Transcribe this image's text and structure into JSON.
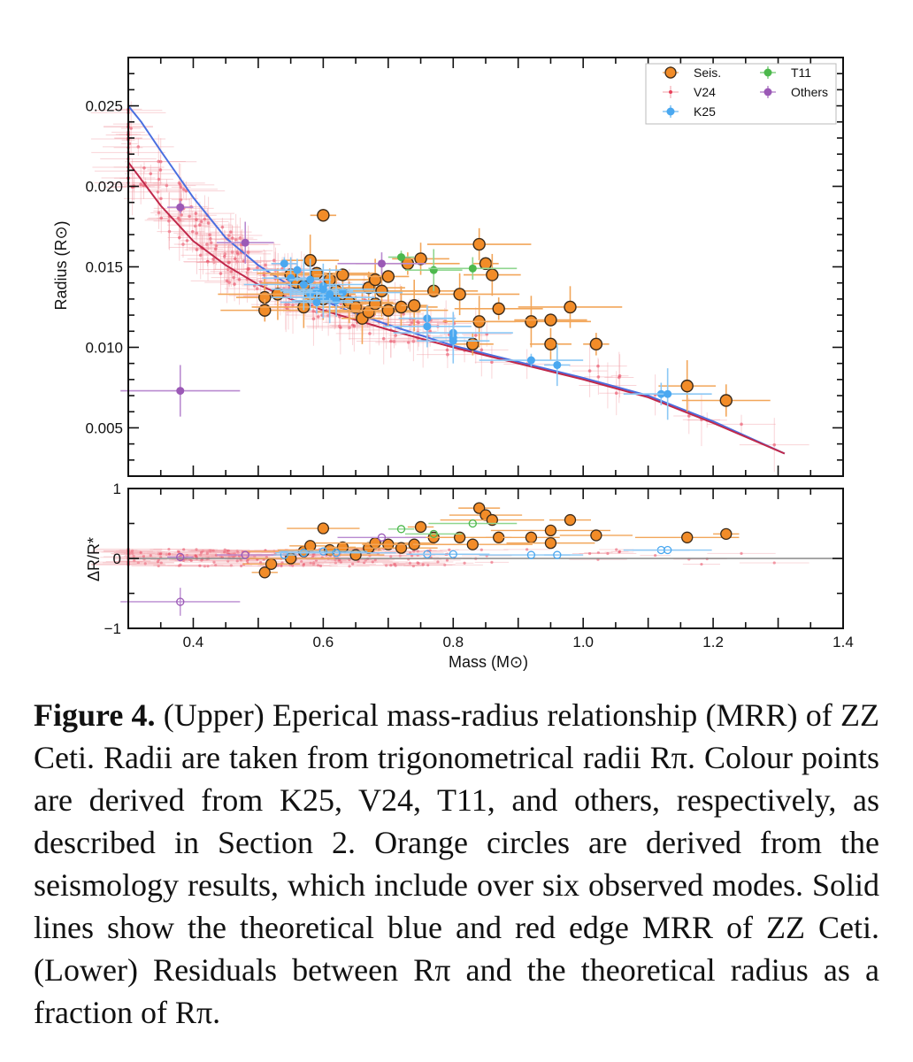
{
  "chart_data": {
    "type": "scatter",
    "upper": {
      "xlabel": "",
      "ylabel": "Radius (R⊙)",
      "ylim": [
        0.002,
        0.028
      ],
      "yticks": [
        "0.005",
        "0.010",
        "0.015",
        "0.020",
        "0.025"
      ],
      "legend_position": "top-right",
      "legend": [
        "Seis.",
        "V24",
        "K25",
        "T11",
        "Others"
      ],
      "series": [
        {
          "name": "Seis.",
          "color": "#f28c28",
          "points": [
            [
              0.6,
              0.0182
            ],
            [
              0.51,
              0.0131
            ],
            [
              0.51,
              0.0123
            ],
            [
              0.53,
              0.0133
            ],
            [
              0.55,
              0.0145
            ],
            [
              0.56,
              0.014
            ],
            [
              0.57,
              0.0125
            ],
            [
              0.57,
              0.0138
            ],
            [
              0.58,
              0.0154
            ],
            [
              0.58,
              0.0133
            ],
            [
              0.59,
              0.0146
            ],
            [
              0.6,
              0.013
            ],
            [
              0.61,
              0.0142
            ],
            [
              0.62,
              0.0135
            ],
            [
              0.63,
              0.0133
            ],
            [
              0.63,
              0.0145
            ],
            [
              0.64,
              0.0128
            ],
            [
              0.65,
              0.0125
            ],
            [
              0.66,
              0.0118
            ],
            [
              0.67,
              0.0137
            ],
            [
              0.67,
              0.0122
            ],
            [
              0.68,
              0.0142
            ],
            [
              0.68,
              0.0127
            ],
            [
              0.69,
              0.0135
            ],
            [
              0.7,
              0.0123
            ],
            [
              0.7,
              0.0144
            ],
            [
              0.72,
              0.0125
            ],
            [
              0.73,
              0.0152
            ],
            [
              0.74,
              0.0126
            ],
            [
              0.75,
              0.0155
            ],
            [
              0.77,
              0.0135
            ],
            [
              0.81,
              0.0133
            ],
            [
              0.83,
              0.0102
            ],
            [
              0.84,
              0.0116
            ],
            [
              0.84,
              0.0164
            ],
            [
              0.85,
              0.0152
            ],
            [
              0.86,
              0.0145
            ],
            [
              0.87,
              0.0124
            ],
            [
              0.92,
              0.0116
            ],
            [
              0.95,
              0.0102
            ],
            [
              0.95,
              0.0117
            ],
            [
              0.98,
              0.0125
            ],
            [
              1.02,
              0.0102
            ],
            [
              1.16,
              0.0076
            ],
            [
              1.22,
              0.0067
            ]
          ]
        },
        {
          "name": "K25",
          "color": "#4aa8f0",
          "points": [
            [
              0.54,
              0.0152
            ],
            [
              0.55,
              0.0143
            ],
            [
              0.56,
              0.0148
            ],
            [
              0.57,
              0.0139
            ],
            [
              0.58,
              0.0133
            ],
            [
              0.59,
              0.0135
            ],
            [
              0.6,
              0.0131
            ],
            [
              0.6,
              0.0138
            ],
            [
              0.61,
              0.0131
            ],
            [
              0.62,
              0.0129
            ],
            [
              0.63,
              0.0134
            ],
            [
              0.58,
              0.0142
            ],
            [
              0.59,
              0.0128
            ],
            [
              0.6,
              0.0136
            ],
            [
              0.61,
              0.0133
            ],
            [
              0.76,
              0.0118
            ],
            [
              0.76,
              0.0113
            ],
            [
              0.8,
              0.0109
            ],
            [
              0.8,
              0.0106
            ],
            [
              0.8,
              0.0104
            ],
            [
              0.92,
              0.0092
            ],
            [
              0.96,
              0.0089
            ],
            [
              1.12,
              0.0071
            ],
            [
              1.13,
              0.0071
            ]
          ]
        },
        {
          "name": "T11",
          "color": "#4cb84c",
          "points": [
            [
              0.72,
              0.0156
            ],
            [
              0.77,
              0.0148
            ],
            [
              0.83,
              0.0149
            ]
          ]
        },
        {
          "name": "Others",
          "color": "#9b59b6",
          "points": [
            [
              0.38,
              0.0187
            ],
            [
              0.48,
              0.0165
            ],
            [
              0.69,
              0.0152
            ],
            [
              0.38,
              0.0073
            ]
          ]
        }
      ],
      "theory_lines": [
        {
          "name": "blue edge",
          "color": "#4a6fe0",
          "x": [
            0.3,
            0.32,
            0.35,
            0.4,
            0.45,
            0.5,
            0.55,
            0.6,
            0.65,
            0.7,
            0.8,
            0.9,
            1.0,
            1.1,
            1.2,
            1.31
          ],
          "y": [
            0.025,
            0.024,
            0.0222,
            0.0193,
            0.0168,
            0.0151,
            0.0138,
            0.0129,
            0.0121,
            0.0114,
            0.0101,
            0.0091,
            0.0081,
            0.007,
            0.0054,
            0.0034
          ]
        },
        {
          "name": "red edge",
          "color": "#c0284a",
          "x": [
            0.3,
            0.35,
            0.4,
            0.45,
            0.5,
            0.55,
            0.6,
            0.65,
            0.7,
            0.8,
            0.9,
            1.0,
            1.1,
            1.2,
            1.31
          ],
          "y": [
            0.0215,
            0.0188,
            0.0166,
            0.0151,
            0.0139,
            0.013,
            0.0123,
            0.0117,
            0.0111,
            0.01,
            0.009,
            0.008,
            0.0069,
            0.0053,
            0.0034
          ]
        }
      ]
    },
    "lower": {
      "xlabel": "Mass (M⊙)",
      "ylabel": "ΔR/R*",
      "xlim": [
        0.3,
        1.4
      ],
      "ylim": [
        -1,
        1
      ],
      "xticks": [
        "0.4",
        "0.6",
        "0.8",
        "1.0",
        "1.2",
        "1.4"
      ],
      "yticks": [
        "−1",
        "0",
        "1"
      ],
      "series": [
        {
          "name": "Seis.",
          "color": "#f28c28",
          "points": [
            [
              0.51,
              -0.2
            ],
            [
              0.52,
              -0.08
            ],
            [
              0.55,
              0.0
            ],
            [
              0.57,
              0.1
            ],
            [
              0.58,
              0.18
            ],
            [
              0.6,
              0.43
            ],
            [
              0.61,
              0.12
            ],
            [
              0.63,
              0.16
            ],
            [
              0.65,
              0.05
            ],
            [
              0.67,
              0.15
            ],
            [
              0.68,
              0.22
            ],
            [
              0.7,
              0.2
            ],
            [
              0.72,
              0.15
            ],
            [
              0.74,
              0.2
            ],
            [
              0.75,
              0.45
            ],
            [
              0.77,
              0.3
            ],
            [
              0.81,
              0.3
            ],
            [
              0.83,
              0.2
            ],
            [
              0.84,
              0.72
            ],
            [
              0.85,
              0.62
            ],
            [
              0.86,
              0.55
            ],
            [
              0.87,
              0.3
            ],
            [
              0.92,
              0.3
            ],
            [
              0.95,
              0.22
            ],
            [
              0.95,
              0.4
            ],
            [
              0.98,
              0.55
            ],
            [
              1.02,
              0.33
            ],
            [
              1.16,
              0.3
            ],
            [
              1.22,
              0.35
            ]
          ]
        },
        {
          "name": "K25",
          "color": "#4aa8f0",
          "points": [
            [
              0.54,
              0.05
            ],
            [
              0.57,
              0.08
            ],
            [
              0.6,
              0.1
            ],
            [
              0.62,
              0.08
            ],
            [
              0.76,
              0.06
            ],
            [
              0.8,
              0.06
            ],
            [
              0.92,
              0.05
            ],
            [
              0.96,
              0.05
            ],
            [
              1.12,
              0.12
            ],
            [
              1.13,
              0.12
            ]
          ]
        },
        {
          "name": "T11",
          "color": "#4cb84c",
          "points": [
            [
              0.72,
              0.42
            ],
            [
              0.77,
              0.35
            ],
            [
              0.83,
              0.5
            ]
          ]
        },
        {
          "name": "Others",
          "color": "#9b59b6",
          "points": [
            [
              0.38,
              0.02
            ],
            [
              0.48,
              0.05
            ],
            [
              0.69,
              0.3
            ],
            [
              0.38,
              -0.62
            ]
          ]
        }
      ]
    }
  },
  "caption": {
    "label": "Figure 4.",
    "body": " (Upper) Eperical mass-radius relationship (MRR) of ZZ Ceti. Radii are taken from trigonometrical radii Rπ. Colour points are derived from K25, V24, T11, and others, respectively, as described in Section 2. Orange circles are derived from the seismology results, which include over six observed modes. Solid lines show the theoretical blue and red edge MRR of ZZ Ceti. (Lower) Residuals between Rπ and the theoretical radius as a fraction of Rπ."
  }
}
